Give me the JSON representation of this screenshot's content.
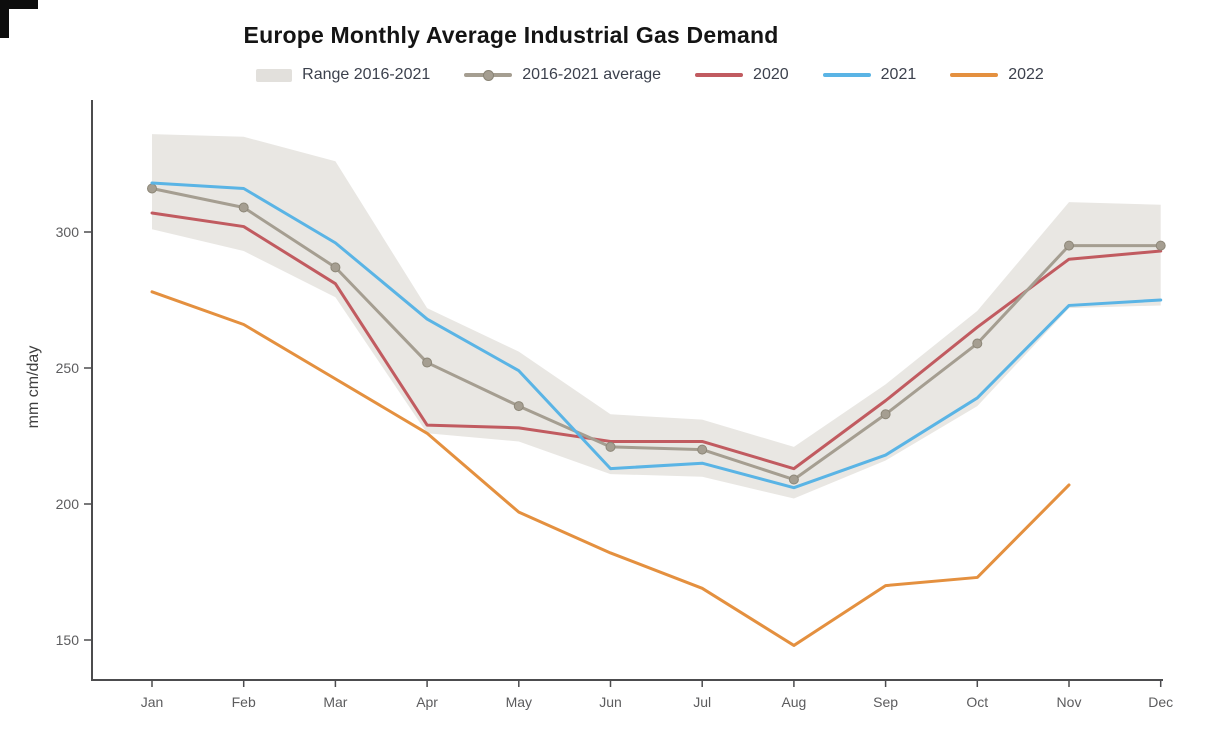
{
  "chart_data": {
    "type": "line",
    "title": "Europe Monthly Average Industrial Gas Demand",
    "xlabel": "",
    "ylabel": "mm cm/day",
    "x_categories": [
      "Jan",
      "Feb",
      "Mar",
      "Apr",
      "May",
      "Jun",
      "Jul",
      "Aug",
      "Sep",
      "Oct",
      "Nov",
      "Dec"
    ],
    "y_ticks": [
      150,
      200,
      250,
      300
    ],
    "ylim": [
      135,
      355
    ],
    "grid": false,
    "legend_position": "top-center",
    "axis_color": "#4c4c4e",
    "tick_label_color": "#5c5c5e",
    "background_color": "#ffffff",
    "band": {
      "name": "Range 2016-2021",
      "color": "#e9e7e3",
      "upper": [
        336,
        335,
        326,
        272,
        256,
        233,
        231,
        221,
        244,
        271,
        311,
        310
      ],
      "lower": [
        301,
        293,
        276,
        226,
        223,
        211,
        210,
        202,
        216,
        236,
        272,
        273
      ]
    },
    "series": [
      {
        "name": "2016-2021 average",
        "color": "#a59e91",
        "marker": true,
        "marker_edge": "#8d8778",
        "values": [
          316,
          309,
          287,
          252,
          236,
          221,
          220,
          209,
          233,
          259,
          295,
          295
        ]
      },
      {
        "name": "2020",
        "color": "#c15b60",
        "marker": false,
        "values": [
          307,
          302,
          281,
          229,
          228,
          223,
          223,
          213,
          238,
          265,
          290,
          293
        ]
      },
      {
        "name": "2021",
        "color": "#5ab4e5",
        "marker": false,
        "values": [
          318,
          316,
          296,
          268,
          249,
          213,
          215,
          206,
          218,
          239,
          273,
          275
        ]
      },
      {
        "name": "2022",
        "color": "#e4903f",
        "marker": false,
        "values": [
          278,
          266,
          246,
          226,
          197,
          182,
          169,
          148,
          170,
          173,
          207,
          null
        ]
      }
    ],
    "legend": [
      {
        "label": "Range 2016-2021",
        "swatch": "band",
        "color": "#e2e0dc"
      },
      {
        "label": "2016-2021 average",
        "swatch": "line-marker",
        "color": "#a59e91"
      },
      {
        "label": "2020",
        "swatch": "line",
        "color": "#c15b60"
      },
      {
        "label": "2021",
        "swatch": "line",
        "color": "#5ab4e5"
      },
      {
        "label": "2022",
        "swatch": "line",
        "color": "#e4903f"
      }
    ]
  }
}
